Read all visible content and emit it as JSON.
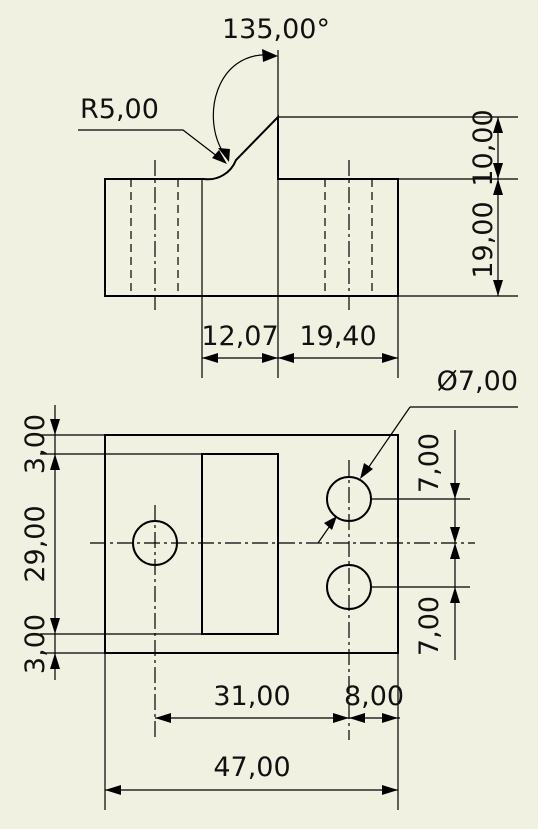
{
  "drawing": {
    "background": "#f1f1e2",
    "line_color": "#000000",
    "front_view": {
      "angle_label": "135,00°",
      "radius_label": "R5,00",
      "height_top_label": "10,00",
      "height_body_label": "19,00",
      "width_left_label": "12,07",
      "width_right_label": "19,40"
    },
    "top_view": {
      "hole_dia_label": "Ø7,00",
      "edge_top_label": "3,00",
      "middle_label": "29,00",
      "edge_bottom_label": "3,00",
      "hole_upper_label": "7,00",
      "hole_lower_label": "7,00",
      "horiz_inner_label": "31,00",
      "horiz_small_label": "8,00",
      "overall_width_label": "47,00"
    }
  }
}
